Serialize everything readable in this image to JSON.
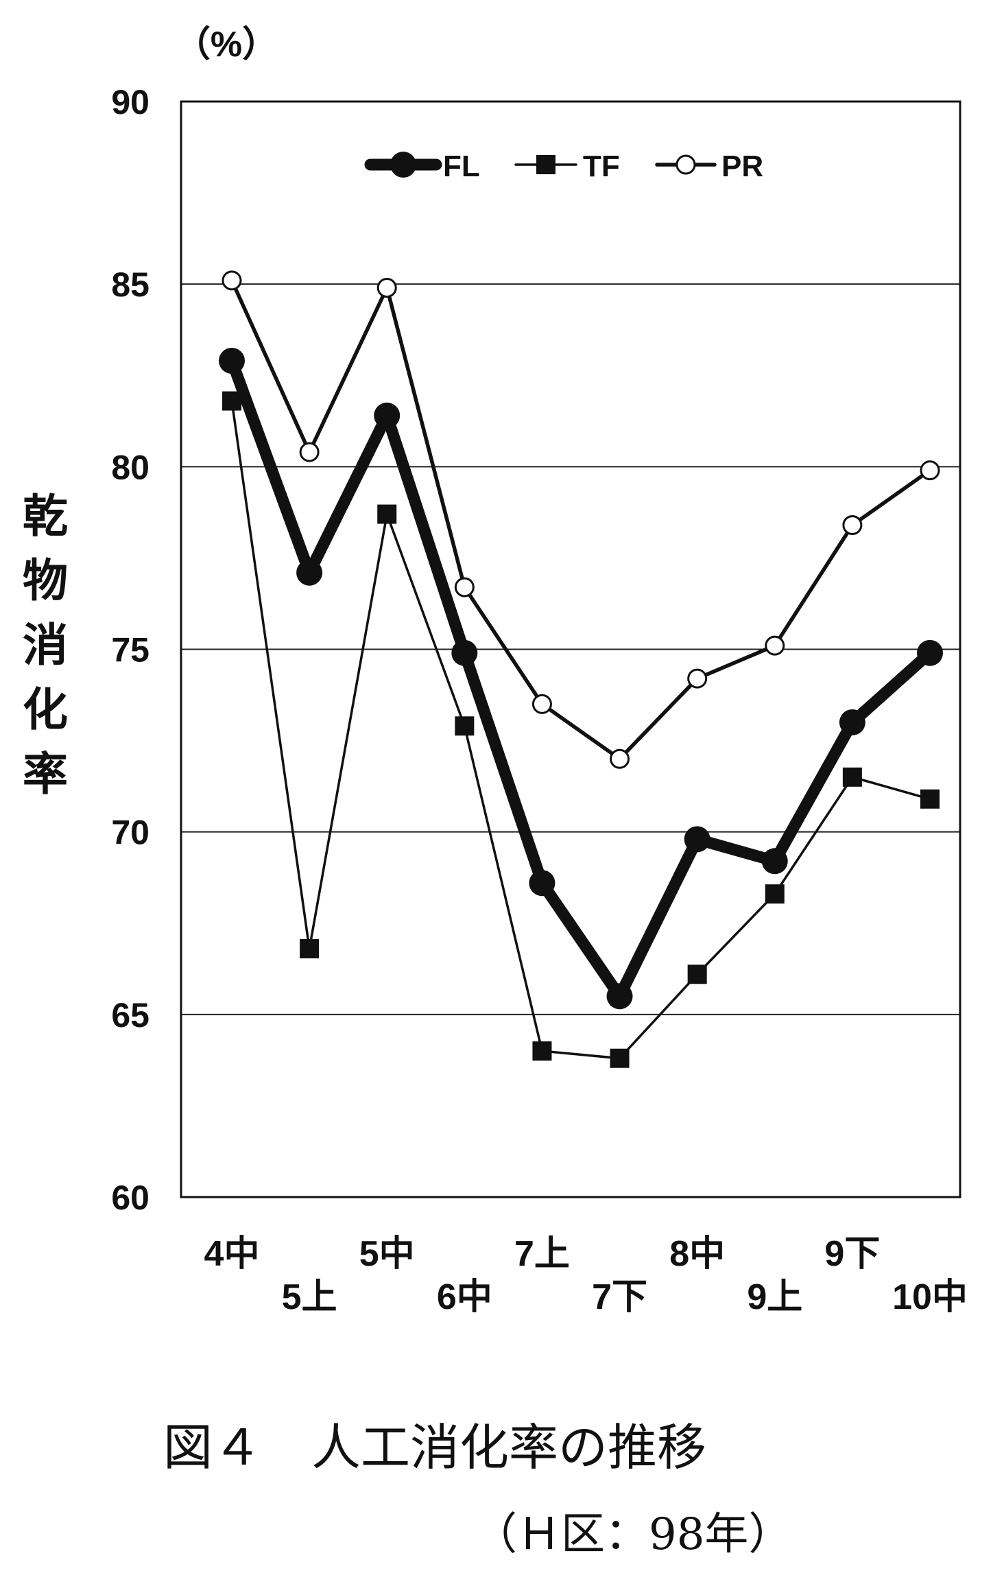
{
  "chart_data": {
    "type": "line",
    "unit_label": "（%）",
    "ylabel": "乾物消化率",
    "ylim": [
      60,
      90
    ],
    "yticks": [
      60,
      65,
      70,
      75,
      80,
      85,
      90
    ],
    "grid": true,
    "legend_position": "top",
    "categories": [
      "4中",
      "5上",
      "5中",
      "6中",
      "7上",
      "7下",
      "8中",
      "9上",
      "9下",
      "10中"
    ],
    "series": [
      {
        "name": "FL",
        "marker": "large-filled-circle",
        "line": "heavy",
        "values": [
          82.9,
          77.1,
          81.4,
          74.9,
          68.6,
          65.5,
          69.8,
          69.2,
          73.0,
          74.9
        ]
      },
      {
        "name": "TF",
        "marker": "filled-square",
        "line": "thin",
        "values": [
          81.8,
          66.8,
          78.7,
          72.9,
          64.0,
          63.8,
          66.1,
          68.3,
          71.5,
          70.9
        ]
      },
      {
        "name": "PR",
        "marker": "open-circle",
        "line": "medium",
        "values": [
          85.1,
          80.4,
          84.9,
          76.7,
          73.5,
          72.0,
          74.2,
          75.1,
          78.4,
          79.9
        ]
      }
    ],
    "caption": {
      "title": "図４　人工消化率の推移",
      "subtitle": "（Ｈ区：98年）"
    }
  }
}
